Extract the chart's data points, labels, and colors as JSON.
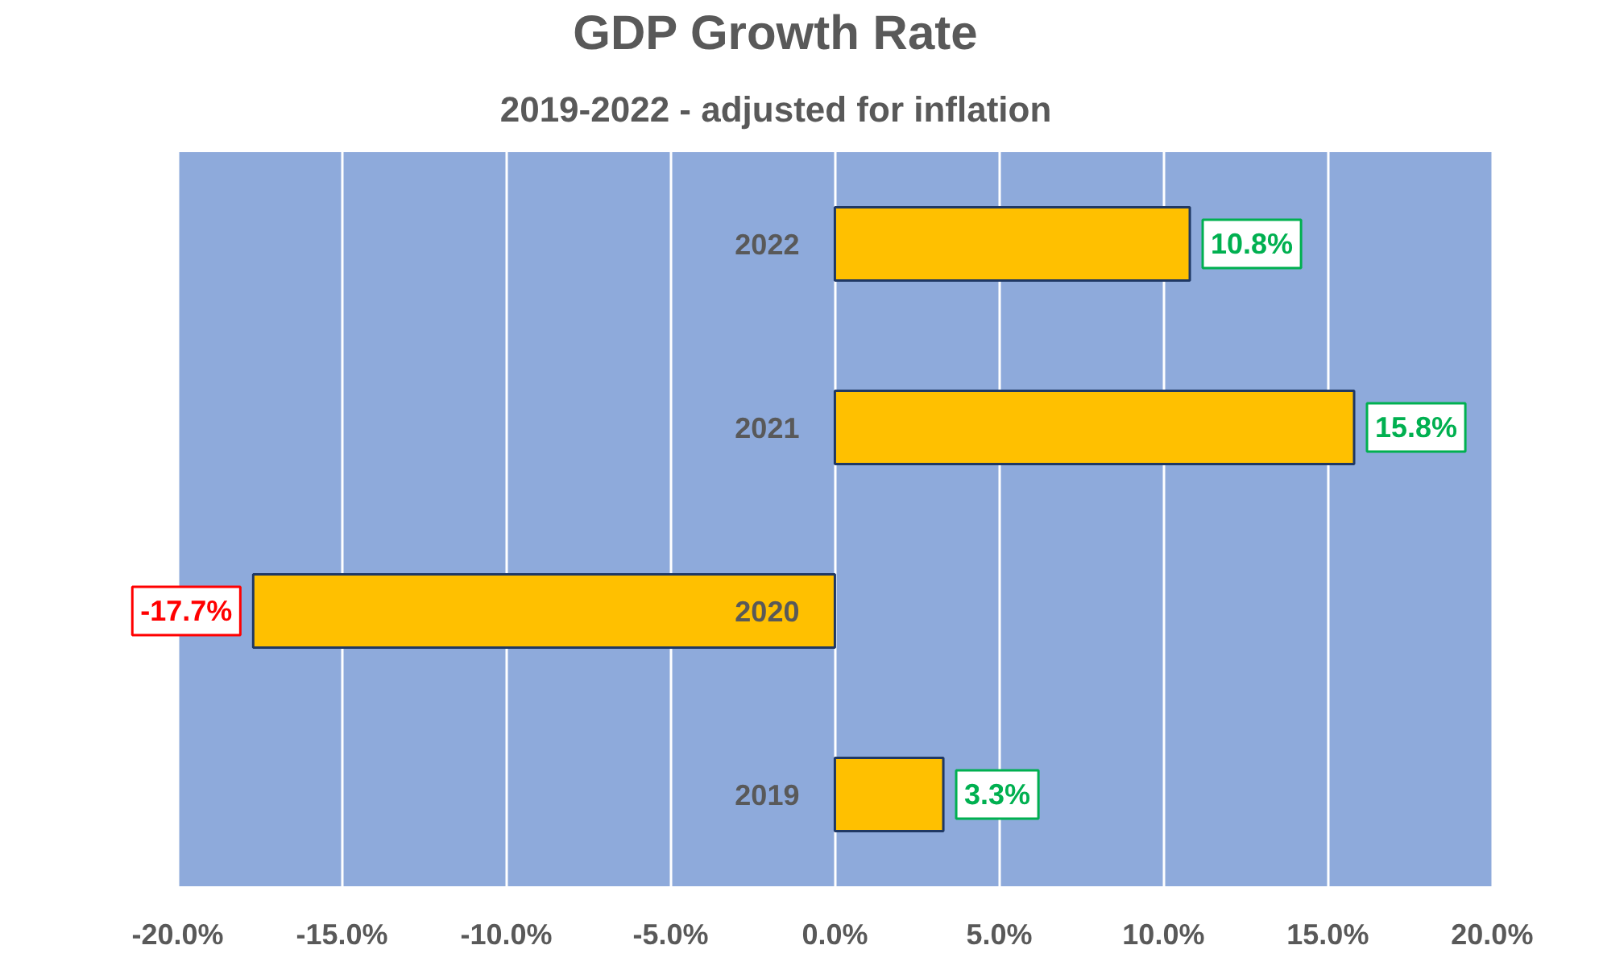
{
  "chart_data": {
    "type": "bar",
    "orientation": "horizontal",
    "title": "GDP Growth Rate",
    "subtitle": "2019-2022 - adjusted for inflation",
    "categories": [
      "2022",
      "2021",
      "2020",
      "2019"
    ],
    "values": [
      10.8,
      15.8,
      -17.7,
      3.3
    ],
    "value_labels": [
      "10.8%",
      "15.8%",
      "-17.7%",
      "3.3%"
    ],
    "color": "#ffc000",
    "xlim": [
      -20,
      20
    ],
    "xticks": [
      {
        "value": -20,
        "label": "-20.0%"
      },
      {
        "value": -15,
        "label": "-15.0%"
      },
      {
        "value": -10,
        "label": "-10.0%"
      },
      {
        "value": -5,
        "label": "-5.0%"
      },
      {
        "value": 0,
        "label": "0.0%"
      },
      {
        "value": 5,
        "label": "5.0%"
      },
      {
        "value": 10,
        "label": "10.0%"
      },
      {
        "value": 15,
        "label": "15.0%"
      },
      {
        "value": 20,
        "label": "20.0%"
      }
    ],
    "grid": "x"
  }
}
